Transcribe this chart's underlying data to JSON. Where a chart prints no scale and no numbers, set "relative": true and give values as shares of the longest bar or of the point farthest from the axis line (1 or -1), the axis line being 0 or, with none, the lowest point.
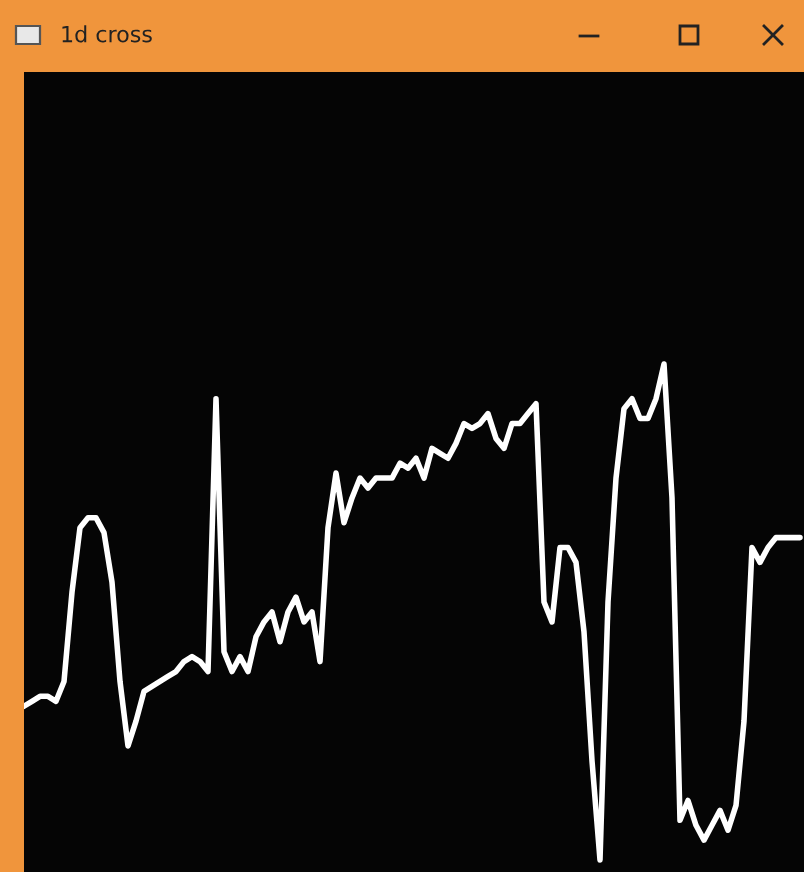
{
  "chart_data": {
    "type": "line",
    "title": "1d cross",
    "relative": true,
    "marker": "none",
    "line_style": "solid",
    "categories": [
      null,
      null,
      null,
      null,
      null,
      null,
      null,
      null,
      null,
      null,
      null,
      null,
      null,
      null,
      null,
      null,
      null,
      null,
      null,
      null,
      null,
      null,
      null,
      null,
      null,
      null,
      null,
      null,
      null,
      null,
      null,
      null,
      null,
      null,
      null,
      null,
      null,
      null,
      null,
      null,
      null,
      null,
      null,
      null,
      null,
      null,
      null,
      null,
      null,
      null,
      null,
      null,
      null,
      null,
      null,
      null,
      null,
      null,
      null,
      null,
      null,
      null,
      null,
      null,
      null,
      null,
      null,
      null,
      null,
      null,
      null,
      null,
      null,
      null,
      null,
      null,
      null,
      null,
      null,
      null,
      null,
      null,
      null,
      null,
      null,
      null,
      null,
      null,
      null,
      null,
      null,
      null,
      null,
      null,
      null,
      null,
      null,
      null
    ],
    "series": [
      {
        "color": "#ffffff",
        "values": [
          0.31,
          0.32,
          0.33,
          0.33,
          0.32,
          0.36,
          0.54,
          0.67,
          0.69,
          0.69,
          0.66,
          0.56,
          0.36,
          0.23,
          0.28,
          0.34,
          0.35,
          0.36,
          0.37,
          0.38,
          0.4,
          0.41,
          0.4,
          0.38,
          0.93,
          0.42,
          0.38,
          0.41,
          0.38,
          0.45,
          0.48,
          0.5,
          0.44,
          0.5,
          0.53,
          0.48,
          0.5,
          0.4,
          0.67,
          0.78,
          0.68,
          0.73,
          0.77,
          0.75,
          0.77,
          0.77,
          0.77,
          0.8,
          0.79,
          0.81,
          0.77,
          0.83,
          0.82,
          0.81,
          0.84,
          0.88,
          0.87,
          0.88,
          0.9,
          0.85,
          0.83,
          0.88,
          0.88,
          0.9,
          0.92,
          0.52,
          0.48,
          0.63,
          0.63,
          0.6,
          0.46,
          0.2,
          0,
          0.52,
          0.77,
          0.91,
          0.93,
          0.89,
          0.89,
          0.93,
          1,
          0.73,
          0.08,
          0.12,
          0.07,
          0.04,
          0.07,
          0.1,
          0.06,
          0.11,
          0.28,
          0.63,
          0.6,
          0.63,
          0.65,
          0.65,
          0.65,
          0.65
        ]
      }
    ]
  }
}
